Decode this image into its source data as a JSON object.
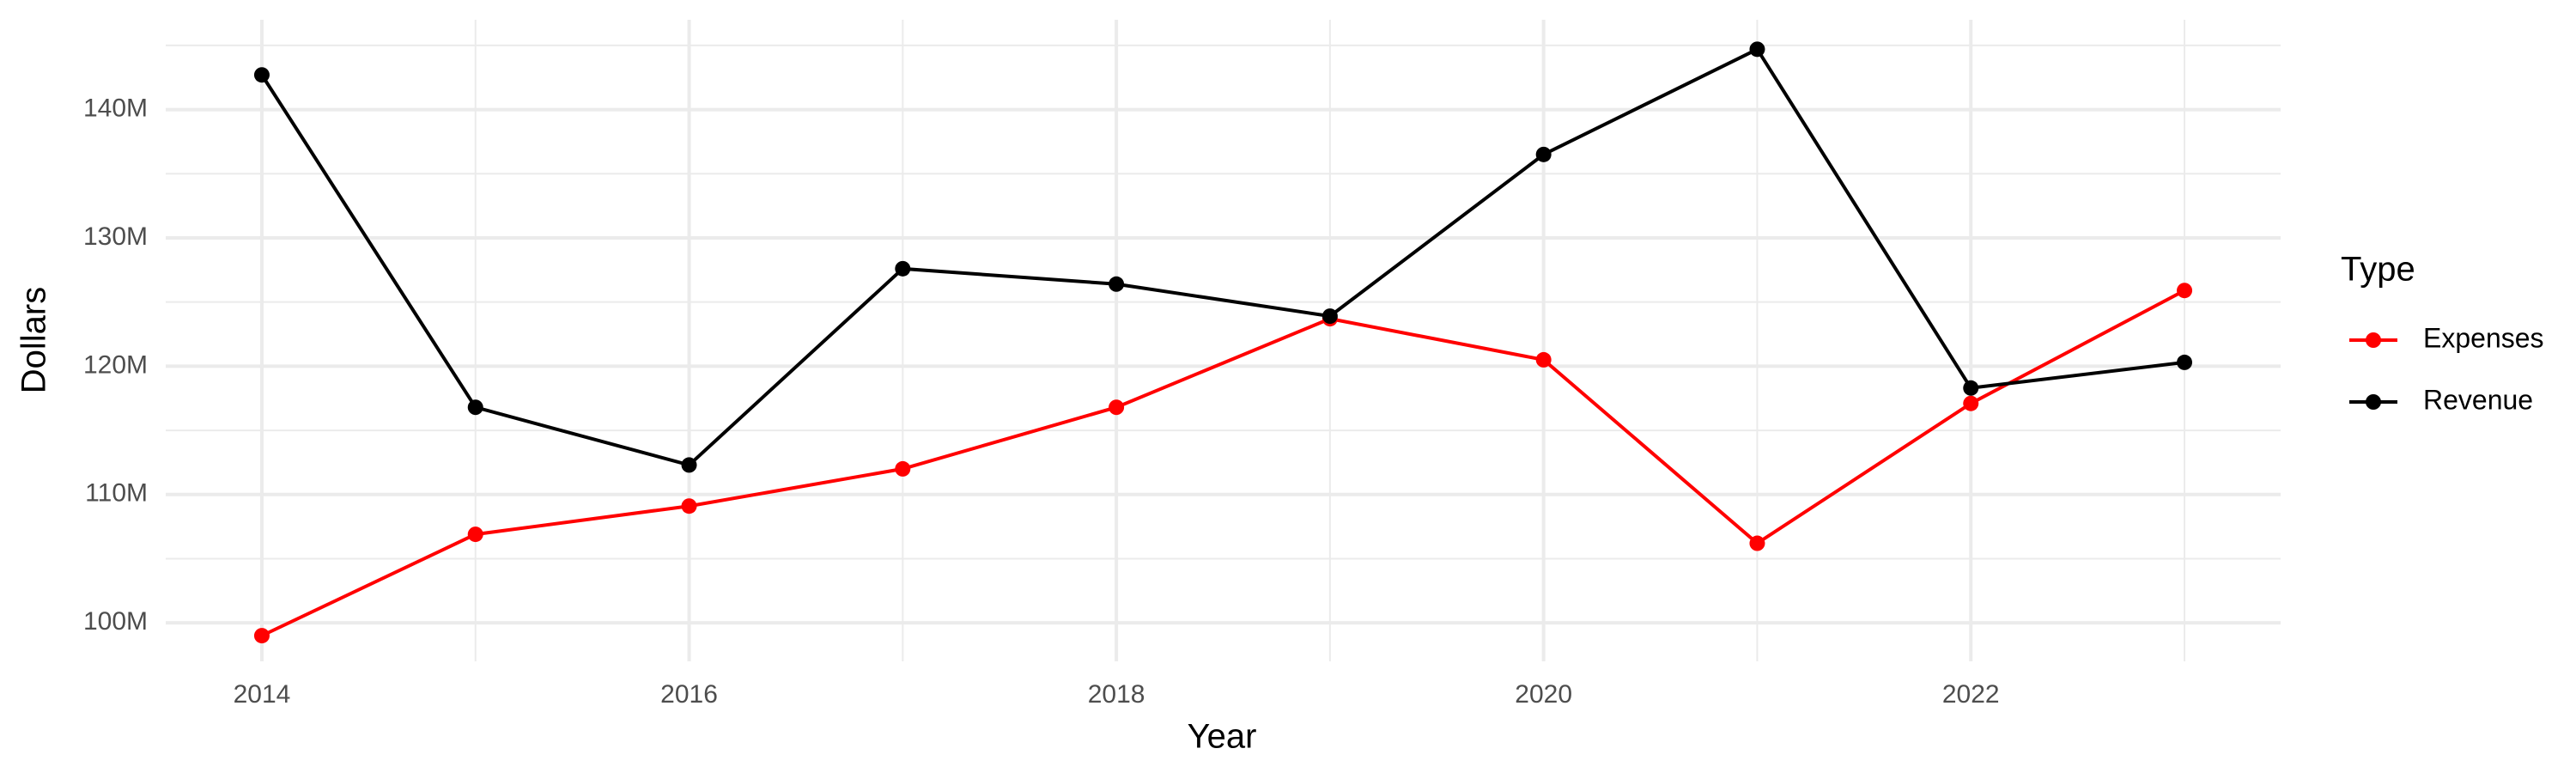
{
  "chart_data": {
    "type": "line",
    "x_label": "Year",
    "y_label": "Dollars",
    "legend_title": "Type",
    "x": [
      2014,
      2015,
      2016,
      2017,
      2018,
      2019,
      2020,
      2021,
      2022,
      2023
    ],
    "series": [
      {
        "name": "Expenses",
        "color": "#ff0000",
        "values": [
          99000000,
          106900000,
          109100000,
          112000000,
          116800000,
          123700000,
          120500000,
          106200000,
          117100000,
          125900000
        ]
      },
      {
        "name": "Revenue",
        "color": "#000000",
        "values": [
          142700000,
          116800000,
          112300000,
          127600000,
          126400000,
          123900000,
          136500000,
          144700000,
          118300000,
          120300000
        ]
      }
    ],
    "xlim": [
      2013.55,
      2023.45
    ],
    "xticks": [
      2014,
      2016,
      2018,
      2020,
      2022
    ],
    "ylim": [
      97000000,
      147000000
    ],
    "yticks": [
      {
        "value": 100000000,
        "label": "100M"
      },
      {
        "value": 110000000,
        "label": "110M"
      },
      {
        "value": 120000000,
        "label": "120M"
      },
      {
        "value": 130000000,
        "label": "130M"
      },
      {
        "value": 140000000,
        "label": "140M"
      }
    ],
    "grid": true,
    "minor_grid": true,
    "legend_position": "right"
  }
}
